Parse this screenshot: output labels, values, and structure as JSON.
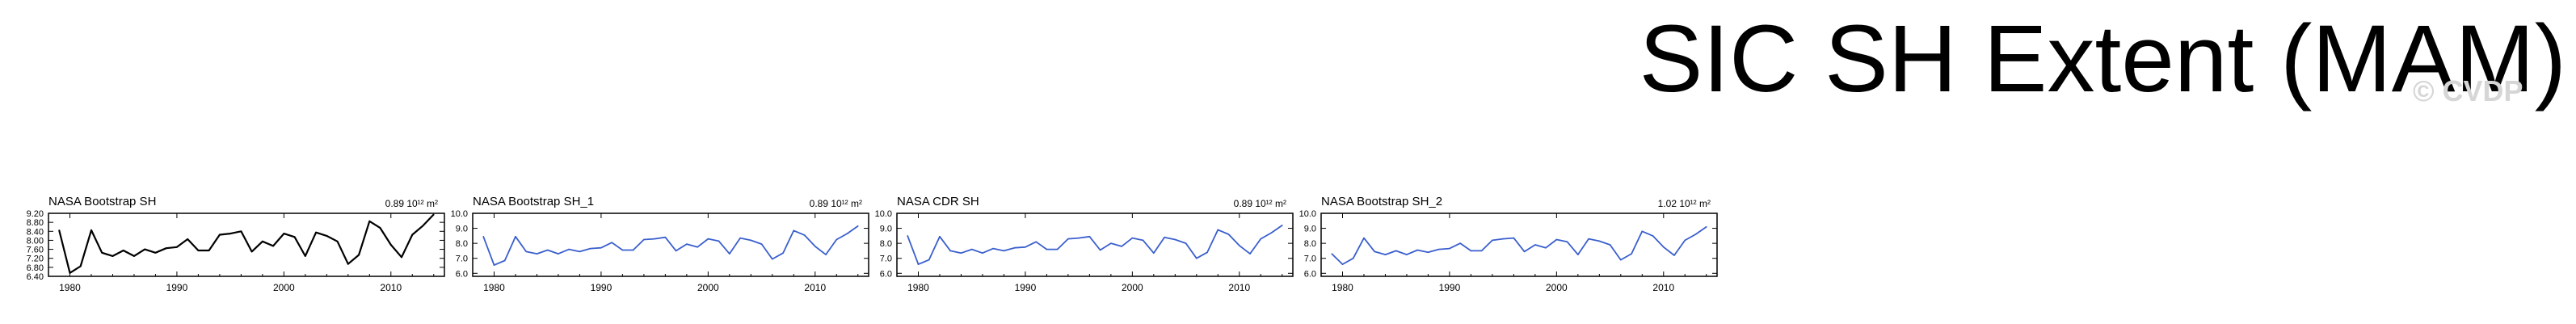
{
  "page_title": "SIC SH Extent (MAM)",
  "watermark": "© CVDP",
  "colors": {
    "black_line": "#000000",
    "blue_line": "#3a5fcd"
  },
  "chart_data": [
    {
      "type": "line",
      "title": "NASA Bootstrap SH",
      "annotation": "0.89 10¹² m²",
      "color": "#000000",
      "x": [
        1979,
        1980,
        1981,
        1982,
        1983,
        1984,
        1985,
        1986,
        1987,
        1988,
        1989,
        1990,
        1991,
        1992,
        1993,
        1994,
        1995,
        1996,
        1997,
        1998,
        1999,
        2000,
        2001,
        2002,
        2003,
        2004,
        2005,
        2006,
        2007,
        2008,
        2009,
        2010,
        2011,
        2012,
        2013,
        2014
      ],
      "values": [
        8.45,
        6.55,
        6.85,
        8.45,
        7.45,
        7.3,
        7.55,
        7.3,
        7.6,
        7.45,
        7.65,
        7.7,
        8.05,
        7.55,
        7.55,
        8.25,
        8.3,
        8.4,
        7.5,
        7.95,
        7.75,
        8.3,
        8.15,
        7.3,
        8.35,
        8.2,
        7.95,
        6.95,
        7.35,
        8.85,
        8.55,
        7.8,
        7.25,
        8.25,
        8.65,
        9.15
      ],
      "xlabels": [
        "1980",
        "1990",
        "2000",
        "2010"
      ],
      "xticks": [
        1980,
        1990,
        2000,
        2010
      ],
      "ylabels": [
        "9.20",
        "8.80",
        "8.40",
        "8.00",
        "7.60",
        "7.20",
        "6.80",
        "6.40"
      ],
      "yticks": [
        9.2,
        8.8,
        8.4,
        8.0,
        7.6,
        7.2,
        6.8,
        6.4
      ],
      "xlim": [
        1978,
        2015
      ],
      "ylim": [
        6.4,
        9.2
      ]
    },
    {
      "type": "line",
      "title": "NASA Bootstrap SH_1",
      "annotation": "0.89 10¹² m²",
      "color": "#3a5fcd",
      "x": [
        1979,
        1980,
        1981,
        1982,
        1983,
        1984,
        1985,
        1986,
        1987,
        1988,
        1989,
        1990,
        1991,
        1992,
        1993,
        1994,
        1995,
        1996,
        1997,
        1998,
        1999,
        2000,
        2001,
        2002,
        2003,
        2004,
        2005,
        2006,
        2007,
        2008,
        2009,
        2010,
        2011,
        2012,
        2013,
        2014
      ],
      "values": [
        8.45,
        6.55,
        6.85,
        8.45,
        7.45,
        7.3,
        7.55,
        7.3,
        7.6,
        7.45,
        7.65,
        7.7,
        8.05,
        7.55,
        7.55,
        8.25,
        8.3,
        8.4,
        7.5,
        7.95,
        7.75,
        8.3,
        8.15,
        7.3,
        8.35,
        8.2,
        7.95,
        6.95,
        7.35,
        8.85,
        8.55,
        7.8,
        7.25,
        8.25,
        8.65,
        9.15
      ],
      "xlabels": [
        "1980",
        "1990",
        "2000",
        "2010"
      ],
      "xticks": [
        1980,
        1990,
        2000,
        2010
      ],
      "ylabels": [
        "10.0",
        "9.0",
        "8.0",
        "7.0",
        "6.0"
      ],
      "yticks": [
        10,
        9,
        8,
        7,
        6
      ],
      "xlim": [
        1978,
        2015
      ],
      "ylim": [
        5.8,
        10
      ]
    },
    {
      "type": "line",
      "title": "NASA CDR SH",
      "annotation": "0.89 10¹² m²",
      "color": "#3a5fcd",
      "x": [
        1979,
        1980,
        1981,
        1982,
        1983,
        1984,
        1985,
        1986,
        1987,
        1988,
        1989,
        1990,
        1991,
        1992,
        1993,
        1994,
        1995,
        1996,
        1997,
        1998,
        1999,
        2000,
        2001,
        2002,
        2003,
        2004,
        2005,
        2006,
        2007,
        2008,
        2009,
        2010,
        2011,
        2012,
        2013,
        2014
      ],
      "values": [
        8.5,
        6.6,
        6.9,
        8.45,
        7.5,
        7.35,
        7.6,
        7.35,
        7.65,
        7.5,
        7.7,
        7.75,
        8.1,
        7.6,
        7.6,
        8.3,
        8.35,
        8.45,
        7.55,
        8.0,
        7.8,
        8.35,
        8.2,
        7.35,
        8.4,
        8.25,
        8.0,
        7.0,
        7.4,
        8.9,
        8.6,
        7.85,
        7.3,
        8.3,
        8.7,
        9.2
      ],
      "xlabels": [
        "1980",
        "1990",
        "2000",
        "2010"
      ],
      "xticks": [
        1980,
        1990,
        2000,
        2010
      ],
      "ylabels": [
        "10.0",
        "9.0",
        "8.0",
        "7.0",
        "6.0"
      ],
      "yticks": [
        10,
        9,
        8,
        7,
        6
      ],
      "xlim": [
        1978,
        2015
      ],
      "ylim": [
        5.8,
        10
      ]
    },
    {
      "type": "line",
      "title": "NASA Bootstrap SH_2",
      "annotation": "1.02 10¹² m²",
      "color": "#3a5fcd",
      "x": [
        1979,
        1980,
        1981,
        1982,
        1983,
        1984,
        1985,
        1986,
        1987,
        1988,
        1989,
        1990,
        1991,
        1992,
        1993,
        1994,
        1995,
        1996,
        1997,
        1998,
        1999,
        2000,
        2001,
        2002,
        2003,
        2004,
        2005,
        2006,
        2007,
        2008,
        2009,
        2010,
        2011,
        2012,
        2013,
        2014
      ],
      "values": [
        7.3,
        6.6,
        7.0,
        8.35,
        7.45,
        7.25,
        7.5,
        7.25,
        7.55,
        7.4,
        7.6,
        7.65,
        8.0,
        7.5,
        7.5,
        8.2,
        8.3,
        8.35,
        7.45,
        7.9,
        7.7,
        8.25,
        8.1,
        7.25,
        8.3,
        8.15,
        7.9,
        6.9,
        7.3,
        8.8,
        8.5,
        7.75,
        7.2,
        8.2,
        8.6,
        9.1
      ],
      "xlabels": [
        "1980",
        "1990",
        "2000",
        "2010"
      ],
      "xticks": [
        1980,
        1990,
        2000,
        2010
      ],
      "ylabels": [
        "10.0",
        "9.0",
        "8.0",
        "7.0",
        "6.0"
      ],
      "yticks": [
        10,
        9,
        8,
        7,
        6
      ],
      "xlim": [
        1978,
        2015
      ],
      "ylim": [
        5.8,
        10
      ]
    }
  ]
}
